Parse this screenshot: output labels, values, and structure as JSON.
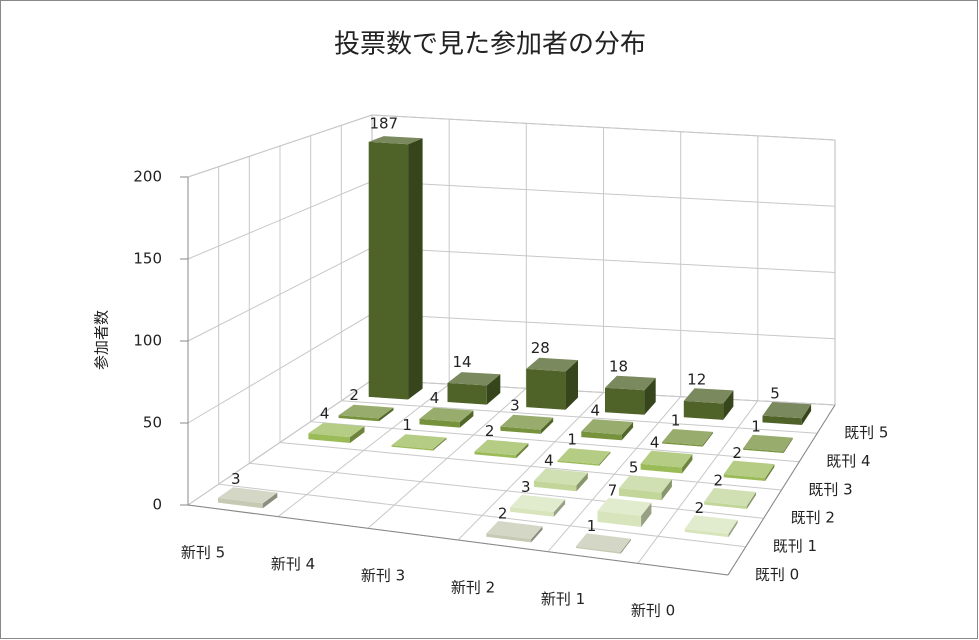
{
  "chart_data": {
    "type": "bar3d",
    "title": "投票数で見た参加者の分布",
    "y_label": "参加者数",
    "categories": [
      "新刊 5",
      "新刊 4",
      "新刊 3",
      "新刊 2",
      "新刊 1",
      "新刊 0"
    ],
    "series": [
      {
        "name": "既刊 0",
        "color": "#c6c9b3",
        "values": [
          3,
          null,
          null,
          2,
          1,
          null
        ]
      },
      {
        "name": "既刊 1",
        "color": "#d7e4bc",
        "values": [
          null,
          null,
          null,
          3,
          7,
          2
        ]
      },
      {
        "name": "既刊 2",
        "color": "#c2d69a",
        "values": [
          null,
          null,
          null,
          4,
          5,
          2
        ]
      },
      {
        "name": "既刊 3",
        "color": "#9bbb59",
        "values": [
          4,
          1,
          2,
          1,
          4,
          2
        ]
      },
      {
        "name": "既刊 4",
        "color": "#76923c",
        "values": [
          2,
          4,
          3,
          4,
          1,
          1
        ]
      },
      {
        "name": "既刊 5",
        "color": "#4f6228",
        "values": [
          187,
          14,
          28,
          18,
          12,
          5
        ]
      }
    ],
    "ylim": [
      0,
      200
    ],
    "yticks": [
      0,
      50,
      100,
      150,
      200
    ],
    "grid": true
  }
}
